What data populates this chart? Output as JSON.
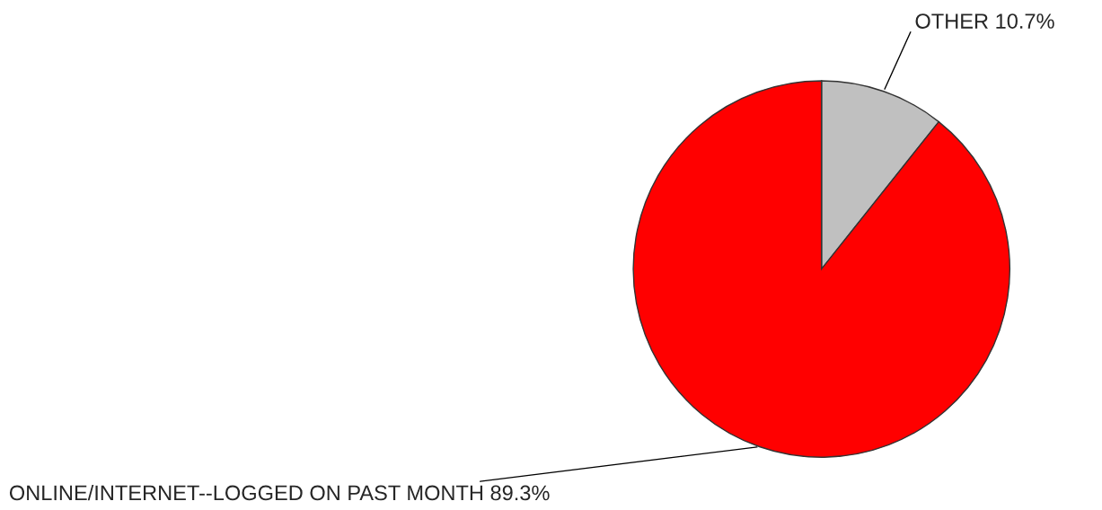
{
  "chart_data": {
    "type": "pie",
    "categories": [
      "OTHER",
      "ONLINE/INTERNET--LOGGED ON PAST MONTH"
    ],
    "values": [
      10.7,
      89.3
    ],
    "value_labels": [
      "10.7%",
      "89.3%"
    ],
    "colors": [
      "#c0c0c0",
      "#ff0000"
    ],
    "legend": false
  }
}
